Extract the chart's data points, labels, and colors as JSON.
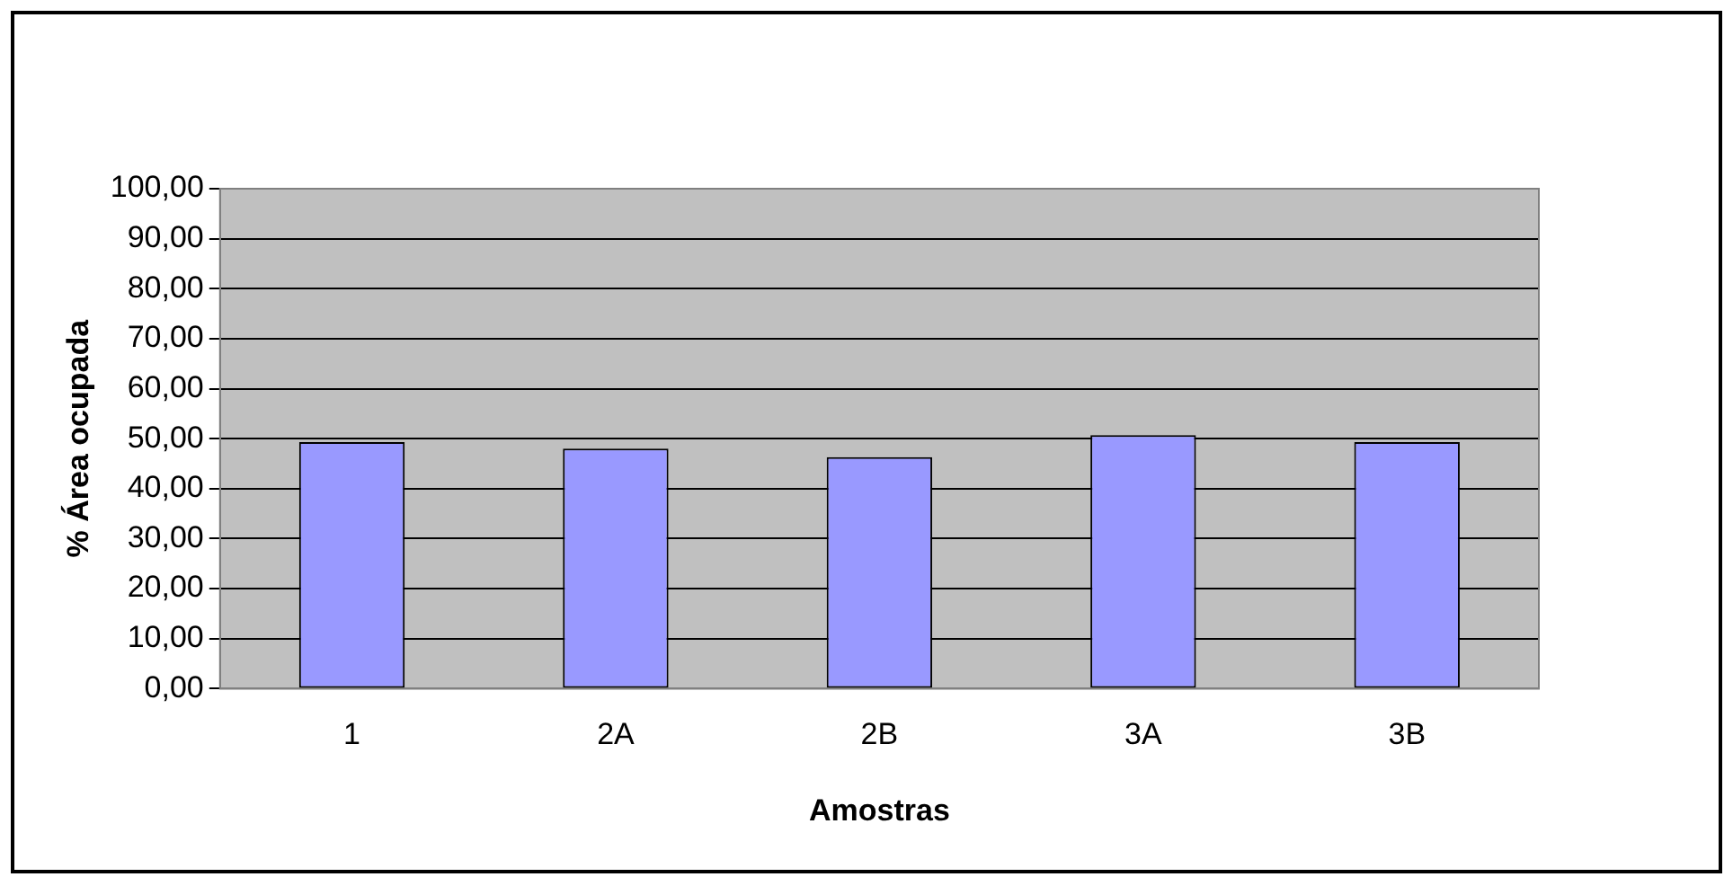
{
  "chart_data": {
    "type": "bar",
    "xlabel": "Amostras",
    "ylabel": "% Área ocupada",
    "categories": [
      "1",
      "2A",
      "2B",
      "3A",
      "3B"
    ],
    "values": [
      49.3,
      48.0,
      46.3,
      50.7,
      49.3
    ],
    "color": "#9999ff",
    "ylim": [
      0,
      100
    ],
    "yticks": [
      {
        "value": 0,
        "label": "0,00"
      },
      {
        "value": 10,
        "label": "10,00"
      },
      {
        "value": 20,
        "label": "20,00"
      },
      {
        "value": 30,
        "label": "30,00"
      },
      {
        "value": 40,
        "label": "40,00"
      },
      {
        "value": 50,
        "label": "50,00"
      },
      {
        "value": 60,
        "label": "60,00"
      },
      {
        "value": 70,
        "label": "70,00"
      },
      {
        "value": 80,
        "label": "80,00"
      },
      {
        "value": 90,
        "label": "90,00"
      },
      {
        "value": 100,
        "label": "100,00"
      }
    ],
    "grid": "y",
    "legend": false
  }
}
